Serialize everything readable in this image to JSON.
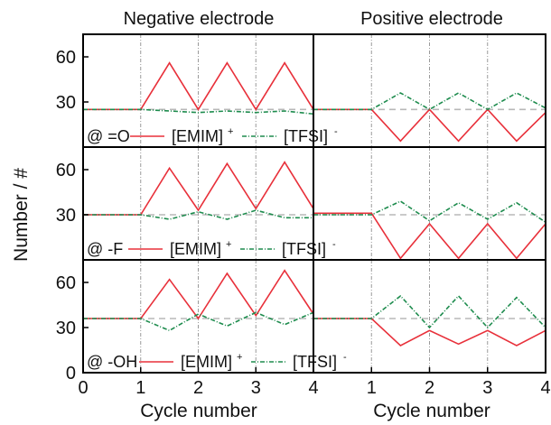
{
  "chart_data": {
    "type": "line",
    "column_titles": [
      "Negative electrode",
      "Positive electrode"
    ],
    "ylabel": "Number / #",
    "xlabel": "Cycle number",
    "xlim": [
      0,
      4
    ],
    "ylim": [
      0,
      75
    ],
    "x_ticks": [
      0,
      1,
      2,
      3,
      4
    ],
    "y_ticks": [
      0,
      30,
      60
    ],
    "vertical_guides": [
      1,
      2,
      3
    ],
    "legend_series": [
      {
        "name": "[EMIM]",
        "sup": "+",
        "color": "#e8303a"
      },
      {
        "name": "[TFSI]",
        "sup": "-",
        "color": "#1e8c4e"
      }
    ],
    "panels": [
      {
        "label": "@ =O",
        "reference": 25,
        "negative": {
          "emim": {
            "x": [
              0,
              1,
              1.5,
              2,
              2.5,
              3,
              3.5,
              4
            ],
            "y": [
              25,
              25,
              56,
              25,
              56,
              25,
              56,
              25
            ]
          },
          "tfsi": {
            "x": [
              0,
              1,
              1.5,
              2,
              2.5,
              3,
              3.5,
              4
            ],
            "y": [
              25,
              25,
              24,
              23,
              24,
              23,
              24,
              22
            ]
          }
        },
        "positive": {
          "emim": {
            "x": [
              0,
              1,
              1.5,
              2,
              2.5,
              3,
              3.5,
              4
            ],
            "y": [
              25,
              25,
              4,
              25,
              4,
              25,
              4,
              23
            ]
          },
          "tfsi": {
            "x": [
              0,
              1,
              1.5,
              2,
              2.5,
              3,
              3.5,
              4
            ],
            "y": [
              25,
              25,
              36,
              25,
              36,
              25,
              36,
              26
            ]
          }
        }
      },
      {
        "label": "@ -F",
        "reference": 30,
        "negative": {
          "emim": {
            "x": [
              0,
              1,
              1.5,
              2,
              2.5,
              3,
              3.5,
              4
            ],
            "y": [
              30,
              30,
              61,
              33,
              64,
              34,
              65,
              34
            ]
          },
          "tfsi": {
            "x": [
              0,
              1,
              1.5,
              2,
              2.5,
              3,
              3.5,
              4
            ],
            "y": [
              30,
              30,
              27,
              32,
              27,
              33,
              28,
              28
            ]
          }
        },
        "positive": {
          "emim": {
            "x": [
              0,
              1,
              1.5,
              2,
              2.5,
              3,
              3.5,
              4
            ],
            "y": [
              31,
              31,
              1,
              24,
              1,
              24,
              1,
              24
            ]
          },
          "tfsi": {
            "x": [
              0,
              1,
              1.5,
              2,
              2.5,
              3,
              3.5,
              4
            ],
            "y": [
              30,
              30,
              39,
              26,
              38,
              27,
              38,
              25
            ]
          }
        }
      },
      {
        "label": "@ -OH",
        "reference": 36,
        "negative": {
          "emim": {
            "x": [
              0,
              1,
              1.5,
              2,
              2.5,
              3,
              3.5,
              4
            ],
            "y": [
              36,
              36,
              62,
              36,
              66,
              38,
              68,
              39
            ]
          },
          "tfsi": {
            "x": [
              0,
              1,
              1.5,
              2,
              2.5,
              3,
              3.5,
              4
            ],
            "y": [
              36,
              36,
              28,
              39,
              31,
              40,
              32,
              40
            ]
          }
        },
        "positive": {
          "emim": {
            "x": [
              0,
              1,
              1.5,
              2,
              2.5,
              3,
              3.5,
              4
            ],
            "y": [
              36,
              36,
              18,
              28,
              19,
              28,
              18,
              28
            ]
          },
          "tfsi": {
            "x": [
              0,
              1,
              1.5,
              2,
              2.5,
              3,
              3.5,
              4
            ],
            "y": [
              36,
              36,
              51,
              30,
              51,
              30,
              50,
              30
            ]
          }
        }
      }
    ]
  }
}
